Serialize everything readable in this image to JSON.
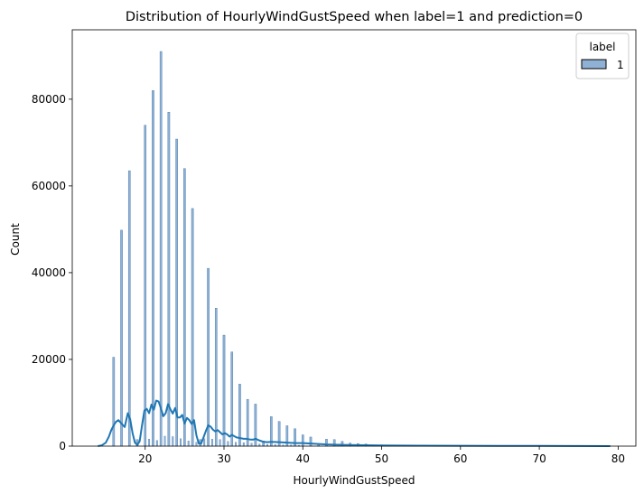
{
  "chart_data": {
    "type": "bar",
    "title": "Distribution of HourlyWindGustSpeed when label=1 and prediction=0",
    "xlabel": "HourlyWindGustSpeed",
    "ylabel": "Count",
    "xlim": [
      10.75,
      82.25
    ],
    "ylim": [
      0,
      96000
    ],
    "x_ticks": [
      20,
      30,
      40,
      50,
      60,
      70,
      80
    ],
    "y_ticks": [
      0,
      20000,
      40000,
      60000,
      80000
    ],
    "grid": false,
    "legend": {
      "title": "label",
      "placement": "top-right",
      "entries": [
        "1"
      ]
    },
    "colors": {
      "bar": "#8fb1d4",
      "bar_edge": "#3f74a8",
      "kde": "#1f77b4"
    },
    "series": [
      {
        "name": "1",
        "bins": [
          [
            16.0,
            20500
          ],
          [
            17.0,
            49800
          ],
          [
            18.0,
            63500
          ],
          [
            19.0,
            1500
          ],
          [
            20.0,
            74000
          ],
          [
            21.0,
            82000
          ],
          [
            22.0,
            91000
          ],
          [
            23.0,
            77000
          ],
          [
            24.0,
            70800
          ],
          [
            25.0,
            64000
          ],
          [
            26.0,
            54800
          ],
          [
            27.0,
            1500
          ],
          [
            28.0,
            41000
          ],
          [
            29.0,
            31800
          ],
          [
            30.0,
            25600
          ],
          [
            31.0,
            21700
          ],
          [
            32.0,
            14300
          ],
          [
            33.0,
            10800
          ],
          [
            34.0,
            9700
          ],
          [
            35.0,
            1200
          ],
          [
            36.0,
            6800
          ],
          [
            37.0,
            5700
          ],
          [
            38.0,
            4700
          ],
          [
            39.0,
            4000
          ],
          [
            40.0,
            2600
          ],
          [
            41.0,
            2100
          ],
          [
            42.0,
            500
          ],
          [
            43.0,
            1600
          ],
          [
            44.0,
            1500
          ],
          [
            45.0,
            1100
          ],
          [
            46.0,
            700
          ],
          [
            47.0,
            600
          ],
          [
            48.0,
            500
          ],
          [
            49.0,
            200
          ],
          [
            50.0,
            300
          ],
          [
            51.0,
            150
          ],
          [
            52.0,
            120
          ],
          [
            53.0,
            100
          ],
          [
            54.0,
            90
          ],
          [
            55.0,
            80
          ],
          [
            56.0,
            70
          ],
          [
            57.0,
            60
          ],
          [
            58.0,
            55
          ],
          [
            59.0,
            50
          ],
          [
            60.0,
            45
          ],
          [
            62.0,
            40
          ],
          [
            64.0,
            35
          ],
          [
            66.0,
            30
          ],
          [
            68.0,
            25
          ],
          [
            70.0,
            20
          ],
          [
            72.0,
            18
          ],
          [
            74.0,
            15
          ],
          [
            76.0,
            12
          ],
          [
            78.0,
            10
          ]
        ],
        "minor_bins": [
          [
            20.5,
            1600
          ],
          [
            21.5,
            1300
          ],
          [
            22.5,
            2300
          ],
          [
            23.5,
            2200
          ],
          [
            24.5,
            1700
          ],
          [
            25.5,
            1200
          ],
          [
            26.5,
            900
          ],
          [
            27.5,
            1700
          ],
          [
            28.5,
            1600
          ],
          [
            29.5,
            1500
          ],
          [
            30.5,
            1100
          ],
          [
            31.5,
            900
          ],
          [
            32.5,
            800
          ],
          [
            33.5,
            700
          ],
          [
            34.5,
            500
          ],
          [
            35.5,
            400
          ],
          [
            36.5,
            350
          ],
          [
            37.5,
            300
          ],
          [
            38.5,
            250
          ],
          [
            39.5,
            200
          ]
        ],
        "kde": {
          "x": [
            14.0,
            14.5,
            15.0,
            15.4,
            15.7,
            16.0,
            16.3,
            16.6,
            17.0,
            17.4,
            17.8,
            18.1,
            18.4,
            18.7,
            19.0,
            19.3,
            19.6,
            19.9,
            20.2,
            20.5,
            20.8,
            21.1,
            21.4,
            21.7,
            22.0,
            22.3,
            22.6,
            22.9,
            23.2,
            23.5,
            23.8,
            24.1,
            24.4,
            24.7,
            25.0,
            25.3,
            25.6,
            25.9,
            26.2,
            26.5,
            26.8,
            27.1,
            27.4,
            27.7,
            28.0,
            28.3,
            28.6,
            28.9,
            29.2,
            29.5,
            29.8,
            30.1,
            30.4,
            30.7,
            31.0,
            31.3,
            31.6,
            31.9,
            32.2,
            32.5,
            32.8,
            33.1,
            33.4,
            33.7,
            34.0,
            34.5,
            35.0,
            35.5,
            36.0,
            37.0,
            38.0,
            39.0,
            40.0,
            41.0,
            42.0,
            43.0,
            44.0,
            46.0,
            48.0,
            50.0,
            55.0,
            60.0,
            65.0,
            70.0,
            75.0,
            79.0
          ],
          "y": [
            0,
            200,
            800,
            2200,
            3700,
            4800,
            5600,
            6000,
            5200,
            4400,
            7600,
            6200,
            3000,
            800,
            300,
            1100,
            4800,
            8200,
            8600,
            7600,
            9600,
            8400,
            10500,
            10300,
            8700,
            6900,
            7600,
            9700,
            8500,
            7500,
            8800,
            6600,
            6600,
            7200,
            5200,
            6500,
            6000,
            5100,
            6000,
            2500,
            600,
            600,
            2000,
            3500,
            4800,
            4500,
            3800,
            3400,
            3700,
            3200,
            2700,
            3000,
            2700,
            2200,
            2600,
            2300,
            2000,
            1900,
            1800,
            1700,
            1700,
            1600,
            1500,
            1500,
            1700,
            1300,
            1000,
            900,
            1000,
            900,
            800,
            700,
            700,
            600,
            500,
            400,
            350,
            250,
            200,
            150,
            100,
            80,
            60,
            40,
            30,
            0
          ]
        }
      }
    ]
  }
}
